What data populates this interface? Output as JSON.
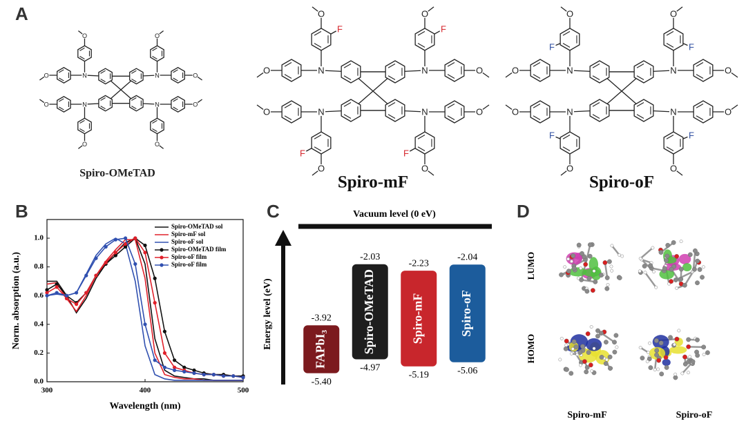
{
  "panel_labels": [
    "A",
    "B",
    "C",
    "D"
  ],
  "atom_labels": {
    "n": "N",
    "o": "O",
    "f": "F"
  },
  "structures": [
    "Spiro-OMeTAD",
    "Spiro-mF",
    "Spiro-oF"
  ],
  "chart_data": [
    {
      "type": "line",
      "x_label": "Wavelength (nm)",
      "y_label": "Norm. absorption (a.u.)",
      "x": [
        300,
        310,
        320,
        330,
        340,
        350,
        360,
        370,
        380,
        390,
        400,
        410,
        420,
        430,
        440,
        450,
        460,
        470,
        480,
        490,
        500
      ],
      "xlim": [
        300,
        500
      ],
      "xticks": [
        300,
        400,
        500
      ],
      "ylim": [
        0,
        1.13
      ],
      "yticks": [
        {
          "value": 0,
          "label": "0.0"
        },
        0.2,
        0.4,
        0.6,
        0.8,
        {
          "value": 1,
          "label": "1.0"
        }
      ],
      "legend": "upper right",
      "series": [
        {
          "name": "Spiro-OMeTAD sol",
          "color": "#111111",
          "marker": false,
          "values": [
            0.7,
            0.7,
            0.6,
            0.48,
            0.58,
            0.72,
            0.82,
            0.9,
            0.97,
            1.0,
            0.82,
            0.3,
            0.08,
            0.04,
            0.03,
            0.02,
            0.02,
            0.01,
            0.01,
            0.01,
            0.01
          ]
        },
        {
          "name": "Spiro-mF sol",
          "color": "#e0202a",
          "marker": false,
          "values": [
            0.68,
            0.69,
            0.58,
            0.49,
            0.6,
            0.74,
            0.84,
            0.92,
            0.99,
            0.99,
            0.72,
            0.2,
            0.05,
            0.03,
            0.02,
            0.02,
            0.01,
            0.01,
            0.01,
            0.01,
            0.01
          ]
        },
        {
          "name": "Spiro-oF sol",
          "color": "#3050b0",
          "marker": false,
          "values": [
            0.6,
            0.61,
            0.6,
            0.62,
            0.75,
            0.88,
            0.96,
            1.0,
            0.96,
            0.7,
            0.25,
            0.05,
            0.02,
            0.01,
            0.01,
            0.01,
            0.01,
            0.01,
            0.01,
            0.01,
            0.01
          ]
        },
        {
          "name": "Spiro-OMeTAD film",
          "color": "#111111",
          "marker": true,
          "values": [
            0.64,
            0.68,
            0.6,
            0.55,
            0.62,
            0.74,
            0.82,
            0.88,
            0.94,
            1.0,
            0.95,
            0.72,
            0.35,
            0.15,
            0.1,
            0.08,
            0.06,
            0.05,
            0.05,
            0.04,
            0.04
          ]
        },
        {
          "name": "Spiro-oF film",
          "color": "#e0202a",
          "marker": true,
          "values": [
            0.62,
            0.66,
            0.58,
            0.54,
            0.62,
            0.74,
            0.83,
            0.9,
            0.96,
            1.0,
            0.9,
            0.55,
            0.2,
            0.1,
            0.08,
            0.06,
            0.05,
            0.05,
            0.04,
            0.04,
            0.03
          ]
        },
        {
          "name": "Spiro-oF film",
          "color": "#3050b0",
          "marker": true,
          "values": [
            0.6,
            0.62,
            0.6,
            0.62,
            0.74,
            0.86,
            0.94,
            0.99,
            1.0,
            0.82,
            0.4,
            0.15,
            0.1,
            0.08,
            0.07,
            0.06,
            0.05,
            0.05,
            0.04,
            0.04,
            0.03
          ]
        }
      ]
    },
    {
      "type": "energy_levels",
      "y_label": "Energy level (eV)",
      "annotation": "Vacuum level (0 eV)",
      "categories": [
        "FAPbI₃",
        "Spiro-OMeTAD",
        "Spiro-mF",
        "Spiro-oF"
      ],
      "colors": [
        "#7c1a1e",
        "#1e1e1e",
        "#c8262c",
        "#1c5c9c"
      ],
      "ylim": [
        -5.6,
        -1.8
      ],
      "lumo": {
        "values": [
          -3.92,
          -2.03,
          -2.23,
          -2.04
        ]
      },
      "homo": {
        "values": [
          -5.4,
          -4.97,
          -5.19,
          -5.06
        ],
        "value_labels": [
          "-5.40",
          "-4.97",
          "-5.19",
          "-5.06"
        ]
      }
    }
  ],
  "panel_d": {
    "rows": [
      "LUMO",
      "HOMO"
    ],
    "columns": [
      "Spiro-mF",
      "Spiro-oF"
    ]
  }
}
